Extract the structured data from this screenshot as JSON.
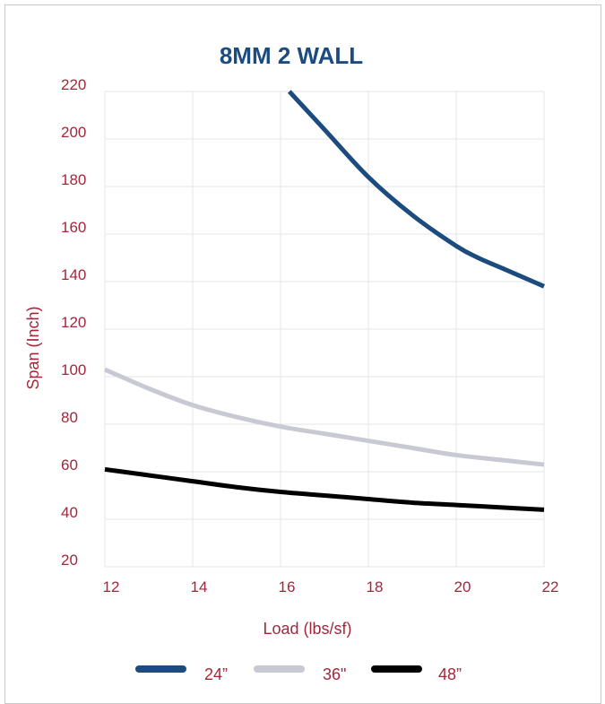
{
  "chart_data": {
    "type": "line",
    "title": "8MM 2 WALL",
    "xlabel": "Load (lbs/sf)",
    "ylabel": "Span (Inch)",
    "xlim": [
      12,
      22
    ],
    "ylim": [
      20,
      220
    ],
    "x_ticks": [
      "12",
      "14",
      "16",
      "18",
      "20",
      "22"
    ],
    "y_ticks": [
      "20",
      "40",
      "60",
      "80",
      "100",
      "120",
      "140",
      "160",
      "180",
      "200",
      "220"
    ],
    "grid": true,
    "legend_position": "bottom",
    "series": [
      {
        "name": "24”",
        "color": "#1b4b7f",
        "x": [
          16.2,
          17,
          18,
          19,
          20,
          20.5,
          21,
          22
        ],
        "y": [
          220,
          204,
          184,
          168,
          155,
          150,
          146,
          138
        ]
      },
      {
        "name": "36\"",
        "color": "#c9c9d3",
        "x": [
          12,
          13,
          14,
          15,
          16,
          17,
          18,
          19,
          20,
          21,
          22
        ],
        "y": [
          103,
          95,
          88,
          83,
          79,
          76,
          73,
          70,
          67,
          65,
          63
        ]
      },
      {
        "name": "48”",
        "color": "#000000",
        "x": [
          12,
          13,
          14,
          15,
          16,
          17,
          18,
          19,
          20,
          21,
          22
        ],
        "y": [
          61,
          58.5,
          56,
          53.5,
          51.5,
          50,
          48.5,
          47,
          46,
          45,
          44
        ]
      }
    ]
  }
}
